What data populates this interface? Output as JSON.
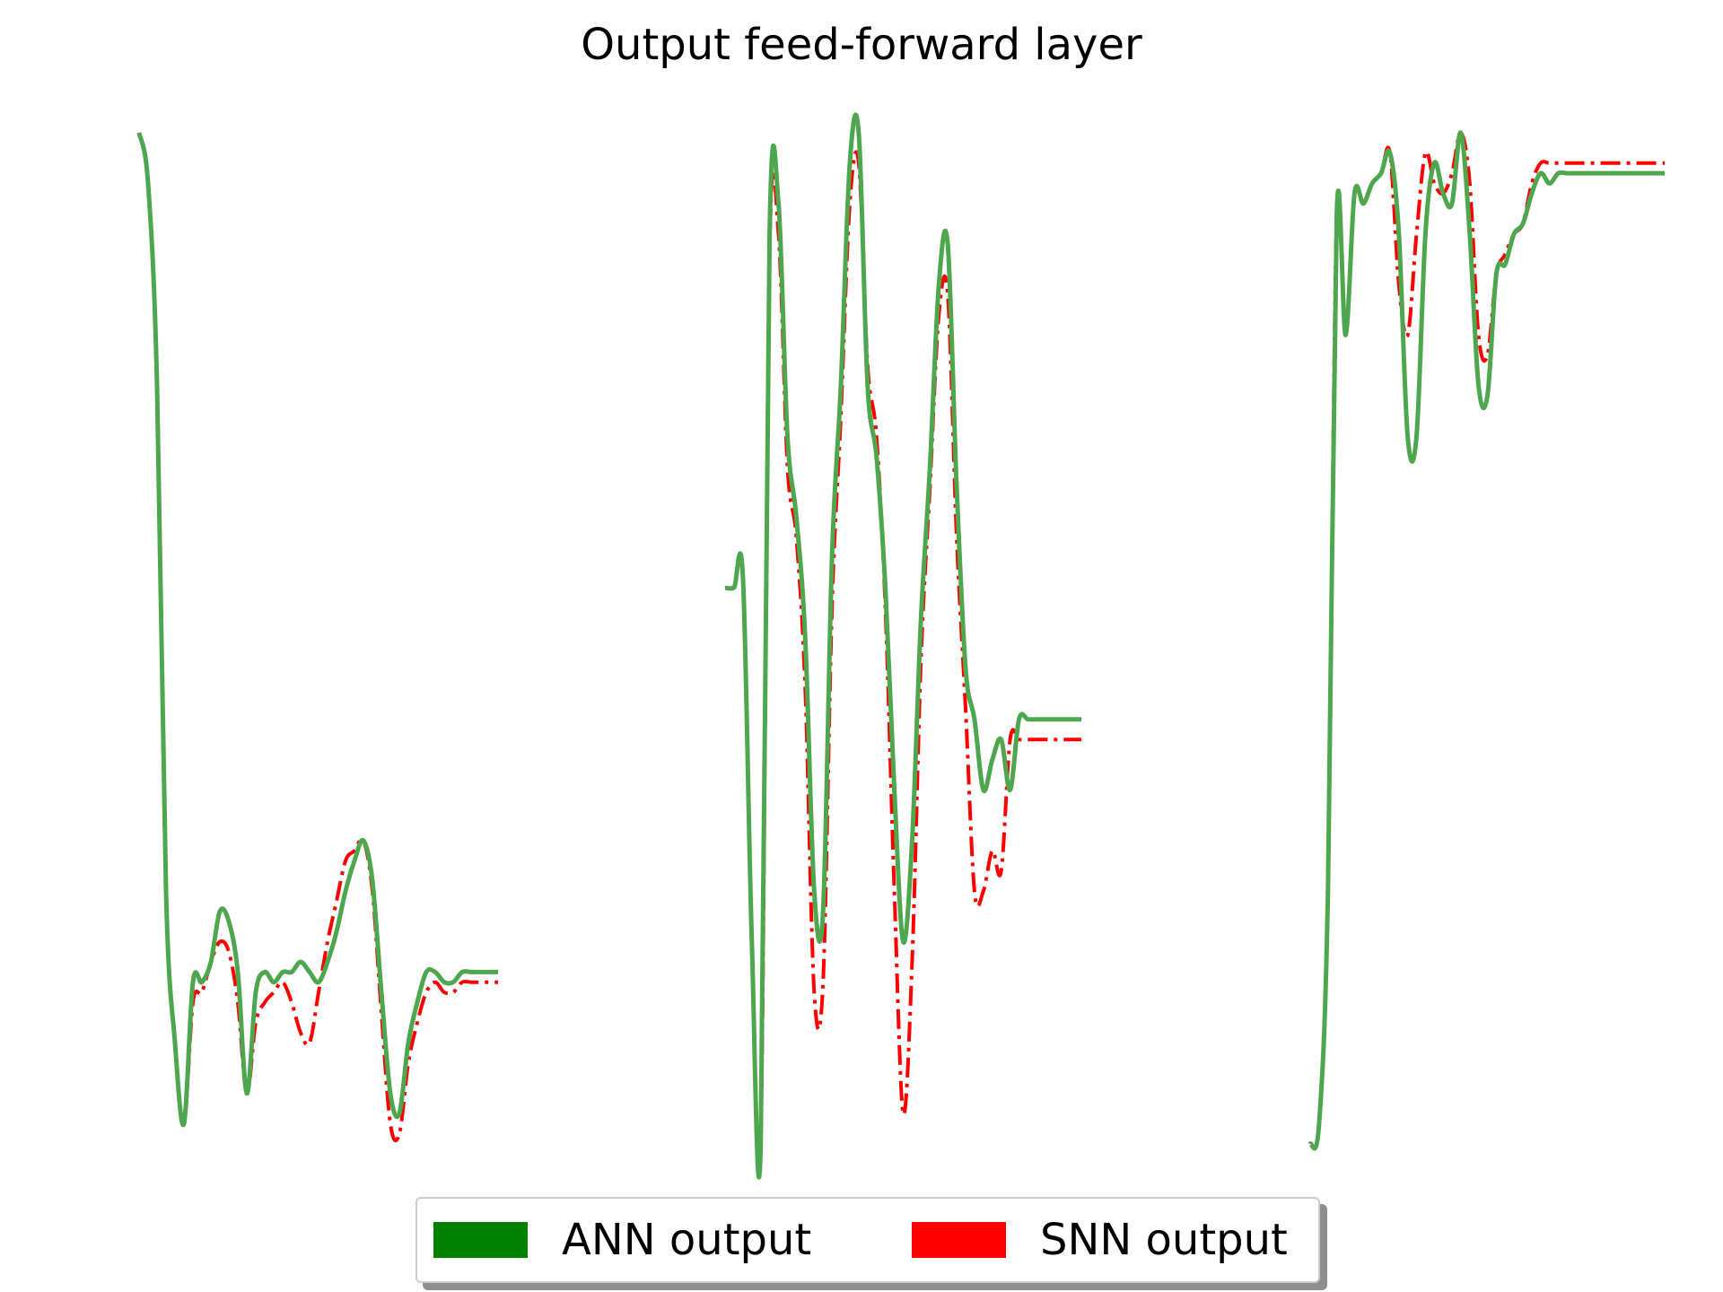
{
  "chart_data": {
    "type": "line",
    "title": "Output feed-forward layer",
    "xlabel": "",
    "ylabel": "",
    "axes_visible": false,
    "grid": false,
    "legend_position": "bottom-center",
    "ylim": [
      0,
      1
    ],
    "panels": [
      {
        "x": [
          0,
          1,
          2,
          3,
          4,
          5,
          6,
          7,
          8,
          9,
          10,
          11,
          12,
          13,
          14,
          15,
          16,
          17,
          18,
          19,
          20,
          21,
          22,
          23,
          24,
          25,
          26,
          27,
          28,
          29,
          30,
          31,
          32,
          33,
          34,
          35,
          36,
          37,
          38,
          39,
          40
        ],
        "series": [
          {
            "name": "ANN output",
            "values": [
              1.0,
              0.95,
              0.75,
              0.25,
              0.1,
              0.02,
              0.16,
              0.16,
              0.18,
              0.23,
              0.22,
              0.17,
              0.05,
              0.15,
              0.17,
              0.16,
              0.17,
              0.17,
              0.18,
              0.17,
              0.16,
              0.18,
              0.21,
              0.25,
              0.28,
              0.3,
              0.26,
              0.15,
              0.05,
              0.03,
              0.1,
              0.14,
              0.17,
              0.17,
              0.16,
              0.16,
              0.17,
              0.17,
              0.17,
              0.17,
              0.17
            ]
          },
          {
            "name": "SNN output",
            "values": [
              1.0,
              0.95,
              0.75,
              0.25,
              0.1,
              0.02,
              0.14,
              0.15,
              0.18,
              0.2,
              0.19,
              0.14,
              0.05,
              0.12,
              0.14,
              0.15,
              0.16,
              0.14,
              0.11,
              0.1,
              0.15,
              0.2,
              0.24,
              0.28,
              0.29,
              0.3,
              0.25,
              0.13,
              0.02,
              0.01,
              0.08,
              0.12,
              0.15,
              0.16,
              0.15,
              0.15,
              0.16,
              0.16,
              0.16,
              0.16,
              0.16
            ]
          }
        ]
      },
      {
        "x": [
          0,
          1,
          2,
          3,
          4,
          5,
          6,
          7,
          8,
          9,
          10,
          11,
          12,
          13,
          14,
          15,
          16,
          17,
          18,
          19,
          20,
          21,
          22,
          23,
          24,
          25,
          26,
          27,
          28,
          29,
          30,
          31,
          32,
          33,
          34,
          35,
          36,
          37,
          38,
          39,
          40
        ],
        "series": [
          {
            "name": "ANN output",
            "values": [
              0.55,
              0.55,
              0.56,
              0.2,
              0.0,
              0.9,
              0.93,
              0.7,
              0.62,
              0.5,
              0.25,
              0.23,
              0.58,
              0.75,
              0.97,
              1.0,
              0.75,
              0.68,
              0.55,
              0.35,
              0.2,
              0.3,
              0.52,
              0.67,
              0.85,
              0.89,
              0.65,
              0.47,
              0.42,
              0.35,
              0.38,
              0.4,
              0.35,
              0.42,
              0.42,
              0.42,
              0.42,
              0.42,
              0.42,
              0.42,
              0.42
            ]
          },
          {
            "name": "SNN output",
            "values": [
              0.55,
              0.55,
              0.56,
              0.2,
              0.0,
              0.88,
              0.9,
              0.67,
              0.6,
              0.45,
              0.15,
              0.16,
              0.53,
              0.72,
              0.93,
              0.97,
              0.77,
              0.7,
              0.53,
              0.25,
              0.03,
              0.18,
              0.48,
              0.65,
              0.82,
              0.84,
              0.6,
              0.43,
              0.25,
              0.25,
              0.29,
              0.27,
              0.4,
              0.4,
              0.4,
              0.4,
              0.4,
              0.4,
              0.4,
              0.4,
              0.4
            ]
          }
        ]
      },
      {
        "x": [
          0,
          1,
          2,
          3,
          4,
          5,
          6,
          7,
          8,
          9,
          10,
          11,
          12,
          13,
          14,
          15,
          16,
          17,
          18,
          19,
          20,
          21,
          22,
          23,
          24,
          25,
          26,
          27,
          28,
          29,
          30,
          31,
          32,
          33,
          34,
          35,
          36,
          37,
          38,
          39,
          40
        ],
        "series": [
          {
            "name": "ANN output",
            "values": [
              0.0,
              0.02,
              0.25,
              0.92,
              0.8,
              0.94,
              0.93,
              0.95,
              0.96,
              0.98,
              0.9,
              0.7,
              0.7,
              0.9,
              0.97,
              0.94,
              0.93,
              1.0,
              0.9,
              0.75,
              0.74,
              0.86,
              0.87,
              0.9,
              0.91,
              0.94,
              0.96,
              0.95,
              0.96,
              0.96,
              0.96,
              0.96,
              0.96,
              0.96,
              0.96,
              0.96,
              0.96,
              0.96,
              0.96,
              0.96,
              0.96
            ]
          },
          {
            "name": "SNN output",
            "values": [
              0.0,
              0.02,
              0.25,
              0.92,
              0.8,
              0.94,
              0.93,
              0.95,
              0.96,
              0.98,
              0.85,
              0.8,
              0.9,
              0.98,
              0.95,
              0.94,
              0.96,
              1.0,
              0.95,
              0.8,
              0.78,
              0.86,
              0.88,
              0.9,
              0.91,
              0.95,
              0.97,
              0.97,
              0.97,
              0.97,
              0.97,
              0.97,
              0.97,
              0.97,
              0.97,
              0.97,
              0.97,
              0.97,
              0.97,
              0.97,
              0.97
            ]
          }
        ]
      }
    ]
  },
  "colors": {
    "ann": "#4ea64e",
    "snn": "#ff0000",
    "ann_legend": "#008000",
    "snn_legend": "#ff0000",
    "overlap": "#5a4e14"
  },
  "legend": {
    "ann_label": "ANN output",
    "snn_label": "SNN output"
  }
}
